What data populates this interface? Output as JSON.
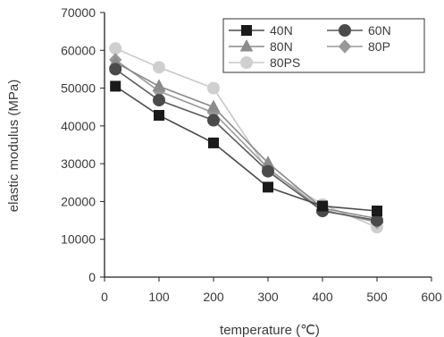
{
  "chart_data": {
    "type": "line",
    "title": "",
    "xlabel": "temperature (℃)",
    "ylabel": "elastic modulus (MPa)",
    "xlim": [
      0,
      600
    ],
    "ylim": [
      0,
      70000
    ],
    "xticks": [
      0,
      100,
      200,
      300,
      400,
      500,
      600
    ],
    "yticks": [
      0,
      10000,
      20000,
      30000,
      40000,
      50000,
      60000,
      70000
    ],
    "grid": false,
    "legend_position": "top-right",
    "x": [
      20,
      100,
      200,
      300,
      400,
      500
    ],
    "series": [
      {
        "name": "40N",
        "marker": "square",
        "color": "#4a4a4a",
        "marker_color": "#1a1a1a",
        "values": [
          50500,
          42800,
          35500,
          23800,
          18800,
          17500
        ]
      },
      {
        "name": "60N",
        "marker": "circle",
        "color": "#5a5a5a",
        "marker_color": "#4a4a4a",
        "values": [
          55000,
          46800,
          41500,
          28000,
          17500,
          15000
        ]
      },
      {
        "name": "80N",
        "marker": "triangle",
        "color": "#8a8a8a",
        "marker_color": "#8c8c8c",
        "values": [
          56800,
          50500,
          45000,
          30200,
          18200,
          15500
        ]
      },
      {
        "name": "80P",
        "marker": "diamond",
        "color": "#9a9a9a",
        "marker_color": "#999999",
        "values": [
          57500,
          49200,
          43500,
          28800,
          17800,
          14500
        ]
      },
      {
        "name": "80PS",
        "marker": "circle",
        "color": "#c8c8c8",
        "marker_color": "#cfcfcf",
        "values": [
          60500,
          55500,
          50000,
          28200,
          19200,
          13200
        ]
      }
    ]
  }
}
